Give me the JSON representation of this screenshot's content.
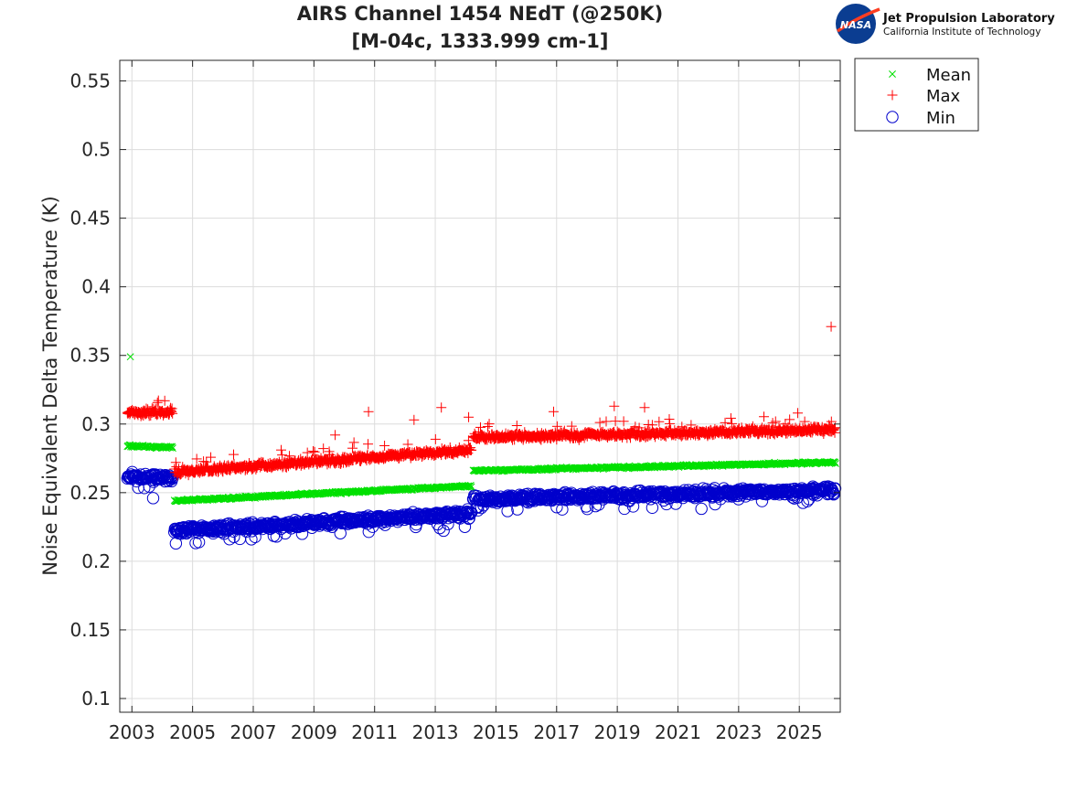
{
  "logo": {
    "badge_text": "NASA",
    "line1": "Jet Propulsion Laboratory",
    "line2": "California Institute of Technology"
  },
  "chart_data": {
    "type": "scatter",
    "title": [
      "AIRS Channel 1454 NEdT (@250K)",
      "[M-04c, 1333.999 cm-1]"
    ],
    "xlabel": "",
    "ylabel": "Noise Equivalent Delta Temperature (K)",
    "xlim": [
      2002.6,
      2026.35
    ],
    "ylim": [
      0.09,
      0.565
    ],
    "xticks": [
      2003,
      2005,
      2007,
      2009,
      2011,
      2013,
      2015,
      2017,
      2019,
      2021,
      2023,
      2025
    ],
    "xtick_labels": [
      "2003",
      "2005",
      "2007",
      "2009",
      "2011",
      "2013",
      "2015",
      "2017",
      "2019",
      "2021",
      "2023",
      "2025"
    ],
    "yticks": [
      0.1,
      0.15,
      0.2,
      0.25,
      0.3,
      0.35,
      0.4,
      0.45,
      0.5,
      0.55
    ],
    "ytick_labels": [
      "0.1",
      "0.15",
      "0.2",
      "0.25",
      "0.3",
      "0.35",
      "0.4",
      "0.45",
      "0.5",
      "0.55"
    ],
    "grid": true,
    "legend_position": "outside top-right",
    "colors": {
      "mean": "#00e000",
      "max": "#ff0000",
      "min": "#0000cc"
    },
    "series": [
      {
        "name": "Mean",
        "marker": "x",
        "segments": [
          {
            "x": [
              2002.85,
              2004.35
            ],
            "y": [
              0.284,
              0.283
            ]
          },
          {
            "x": [
              2004.4,
              2014.2
            ],
            "y": [
              0.244,
              0.255
            ]
          },
          {
            "x": [
              2014.25,
              2026.2
            ],
            "y": [
              0.266,
              0.272
            ]
          }
        ],
        "outliers": [
          {
            "x": 2002.95,
            "y": 0.349
          }
        ]
      },
      {
        "name": "Max",
        "marker": "+",
        "segments": [
          {
            "x": [
              2002.85,
              2004.35
            ],
            "y": [
              0.308,
              0.309
            ]
          },
          {
            "x": [
              2004.4,
              2014.2
            ],
            "y": [
              0.265,
              0.281
            ]
          },
          {
            "x": [
              2014.25,
              2026.2
            ],
            "y": [
              0.29,
              0.296
            ]
          }
        ],
        "outliers": [
          {
            "x": 2009.7,
            "y": 0.292
          },
          {
            "x": 2010.8,
            "y": 0.309
          },
          {
            "x": 2012.3,
            "y": 0.303
          },
          {
            "x": 2013.2,
            "y": 0.312
          },
          {
            "x": 2014.1,
            "y": 0.305
          },
          {
            "x": 2016.9,
            "y": 0.309
          },
          {
            "x": 2018.9,
            "y": 0.313
          },
          {
            "x": 2019.9,
            "y": 0.312
          },
          {
            "x": 2024.95,
            "y": 0.308
          },
          {
            "x": 2026.05,
            "y": 0.371
          }
        ]
      },
      {
        "name": "Min",
        "marker": "o",
        "segments": [
          {
            "x": [
              2002.85,
              2004.35
            ],
            "y": [
              0.262,
              0.26
            ]
          },
          {
            "x": [
              2004.4,
              2014.2
            ],
            "y": [
              0.222,
              0.235
            ]
          },
          {
            "x": [
              2014.25,
              2026.2
            ],
            "y": [
              0.245,
              0.252
            ]
          }
        ],
        "outliers": [
          {
            "x": 2003.7,
            "y": 0.246
          },
          {
            "x": 2004.45,
            "y": 0.213
          }
        ]
      }
    ]
  }
}
